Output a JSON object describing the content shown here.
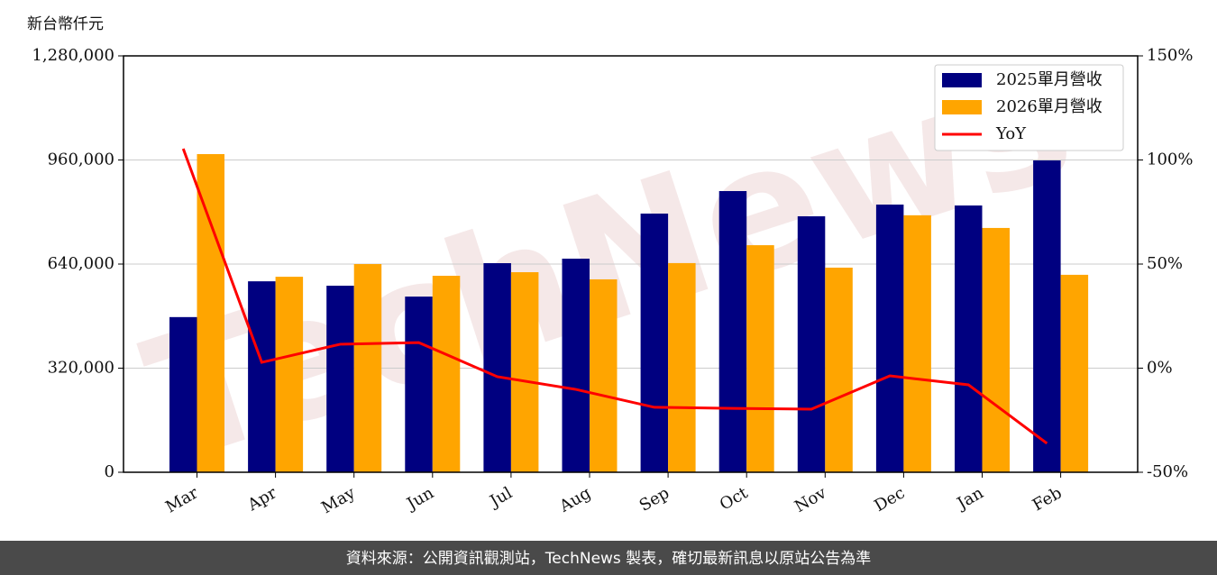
{
  "chart_data": {
    "type": "bar",
    "y_label": "新台幣仟元",
    "categories": [
      "Mar",
      "Apr",
      "May",
      "Jun",
      "Jul",
      "Aug",
      "Sep",
      "Oct",
      "Nov",
      "Dec",
      "Jan",
      "Feb"
    ],
    "series": [
      {
        "name": "2025單月營收",
        "color": "#000080",
        "values": [
          477000,
          587000,
          573500,
          540000,
          642800,
          656600,
          795200,
          864400,
          786900,
          822900,
          820100,
          958600
        ]
      },
      {
        "name": "2026單月營收",
        "color": "#ffa500",
        "values": [
          978000,
          601000,
          640000,
          604000,
          615000,
          593000,
          643000,
          698000,
          629000,
          790000,
          751000,
          607000
        ]
      },
      {
        "name": "YoY",
        "color": "#ff0000",
        "type": "line",
        "axis": "y2",
        "values": [
          105.4,
          2.8,
          11.5,
          12.3,
          -4.1,
          -10.2,
          -18.8,
          -19.3,
          -19.7,
          -3.7,
          -8.0,
          -36.1
        ]
      }
    ],
    "ylim": [
      0,
      1280000
    ],
    "yticks": [
      {
        "value": 0,
        "label": "0"
      },
      {
        "value": 320000,
        "label": "320,000"
      },
      {
        "value": 640000,
        "label": "640,000"
      },
      {
        "value": 960000,
        "label": "960,000"
      },
      {
        "value": 1280000,
        "label": "1,280,000"
      }
    ],
    "y2lim": [
      -50,
      150
    ],
    "y2ticks": [
      {
        "value": -50,
        "label": "-50%"
      },
      {
        "value": 0,
        "label": "0%"
      },
      {
        "value": 50,
        "label": "50%"
      },
      {
        "value": 100,
        "label": "100%"
      },
      {
        "value": 150,
        "label": "150%"
      }
    ],
    "grid": true,
    "legend": "upper right",
    "watermark": "TechNews"
  },
  "footer": "資料來源：公開資訊觀測站，TechNews 製表，確切最新訊息以原站公告為準"
}
